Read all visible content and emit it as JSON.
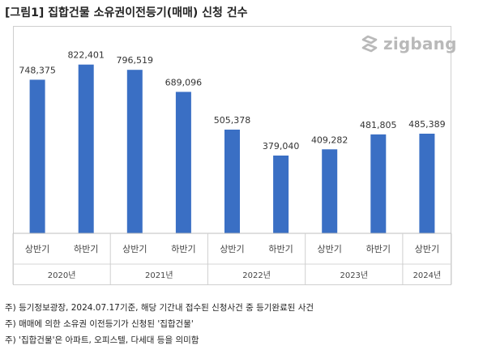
{
  "title": "[그림1] 집합건물 소유권이전등기(매매) 신청 건수",
  "logo": {
    "text": "zigbang",
    "icon": "zigbang-logo-icon"
  },
  "chart_data": {
    "type": "bar",
    "categories": [
      "상반기",
      "하반기",
      "상반기",
      "하반기",
      "상반기",
      "하반기",
      "상반기",
      "하반기",
      "상반기"
    ],
    "groups": [
      {
        "label": "2020년",
        "span": 2
      },
      {
        "label": "2021년",
        "span": 2
      },
      {
        "label": "2022년",
        "span": 2
      },
      {
        "label": "2023년",
        "span": 2
      },
      {
        "label": "2024년",
        "span": 1
      }
    ],
    "values": [
      748375,
      822401,
      796519,
      689096,
      505378,
      379040,
      409282,
      481805,
      485389
    ],
    "value_labels": [
      "748,375",
      "822,401",
      "796,519",
      "689,096",
      "505,378",
      "379,040",
      "409,282",
      "481,805",
      "485,389"
    ],
    "bar_color": "#3a6fc4",
    "ylim": [
      0,
      900000
    ],
    "grid": false,
    "legend": "none"
  },
  "notes": [
    "주) 등기정보광장, 2024.07.17기준, 해당 기간내 접수된 신청사건 중 등기완료된 사건",
    "주) 매매에 의한 소유권 이전등기가 신청된 '집합건물'",
    "주) '집합건물'은 아파트, 오피스텔, 다세대 등을 의미함"
  ]
}
